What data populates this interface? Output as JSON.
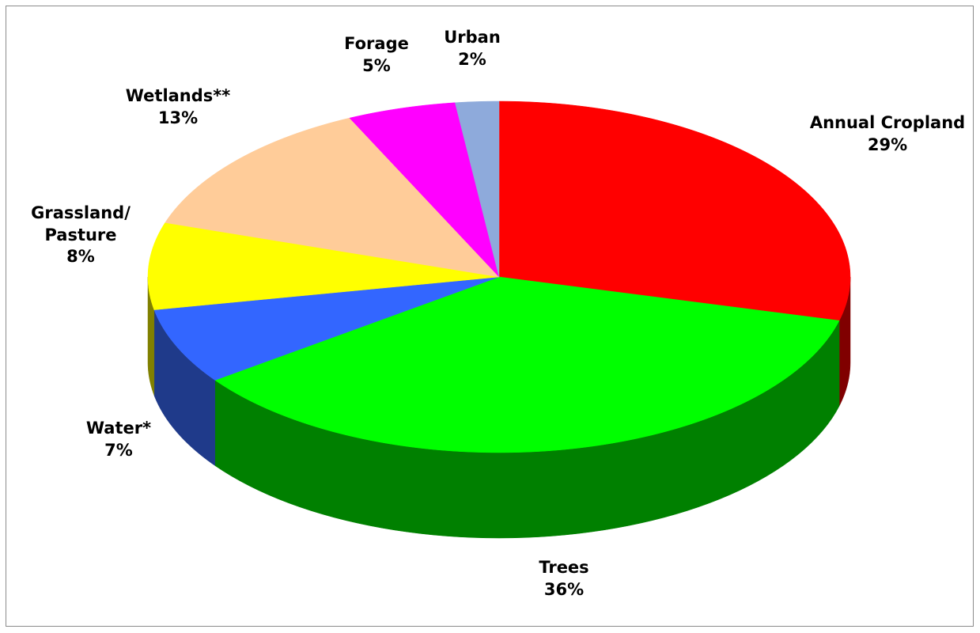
{
  "chart_data": {
    "type": "pie",
    "title": "",
    "style": "3d-exploded-none",
    "slices": [
      {
        "label": "Annual Cropland",
        "value": 29,
        "display": "29%",
        "color": "#ff0000",
        "side_color": "#800000"
      },
      {
        "label": "Trees",
        "value": 36,
        "display": "36%",
        "color": "#00ff00",
        "side_color": "#008000"
      },
      {
        "label": "Water*",
        "value": 7,
        "display": "7%",
        "color": "#3366ff",
        "side_color": "#1f3a8a"
      },
      {
        "label": "Grassland/ Pasture",
        "label_lines": [
          "Grassland/",
          "Pasture"
        ],
        "value": 8,
        "display": "8%",
        "color": "#ffff00",
        "side_color": "#808000"
      },
      {
        "label": "Wetlands**",
        "value": 13,
        "display": "13%",
        "color": "#ffcc99",
        "side_color": "#b38f6b"
      },
      {
        "label": "Forage",
        "value": 5,
        "display": "5%",
        "color": "#ff00ff",
        "side_color": "#800080"
      },
      {
        "label": "Urban",
        "value": 2,
        "display": "2%",
        "color": "#8eaadb",
        "side_color": "#5a6f94"
      }
    ]
  }
}
